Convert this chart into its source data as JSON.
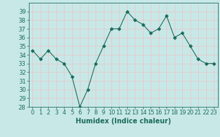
{
  "x": [
    0,
    1,
    2,
    3,
    4,
    5,
    6,
    7,
    8,
    9,
    10,
    11,
    12,
    13,
    14,
    15,
    16,
    17,
    18,
    19,
    20,
    21,
    22,
    23
  ],
  "y": [
    34.5,
    33.5,
    34.5,
    33.5,
    33.0,
    31.5,
    28.0,
    30.0,
    33.0,
    35.0,
    37.0,
    37.0,
    39.0,
    38.0,
    37.5,
    36.5,
    37.0,
    38.5,
    36.0,
    36.5,
    35.0,
    33.5,
    33.0,
    33.0
  ],
  "xlabel": "Humidex (Indice chaleur)",
  "ylim": [
    28,
    40
  ],
  "xlim": [
    -0.5,
    23.5
  ],
  "yticks": [
    28,
    29,
    30,
    31,
    32,
    33,
    34,
    35,
    36,
    37,
    38,
    39
  ],
  "xticks": [
    0,
    1,
    2,
    3,
    4,
    5,
    6,
    7,
    8,
    9,
    10,
    11,
    12,
    13,
    14,
    15,
    16,
    17,
    18,
    19,
    20,
    21,
    22,
    23
  ],
  "line_color": "#1a6b5a",
  "marker": "D",
  "marker_size": 2.5,
  "bg_color": "#c8e8e8",
  "grid_color": "#e8c8c8",
  "tick_label_fontsize": 6,
  "xlabel_fontsize": 7
}
